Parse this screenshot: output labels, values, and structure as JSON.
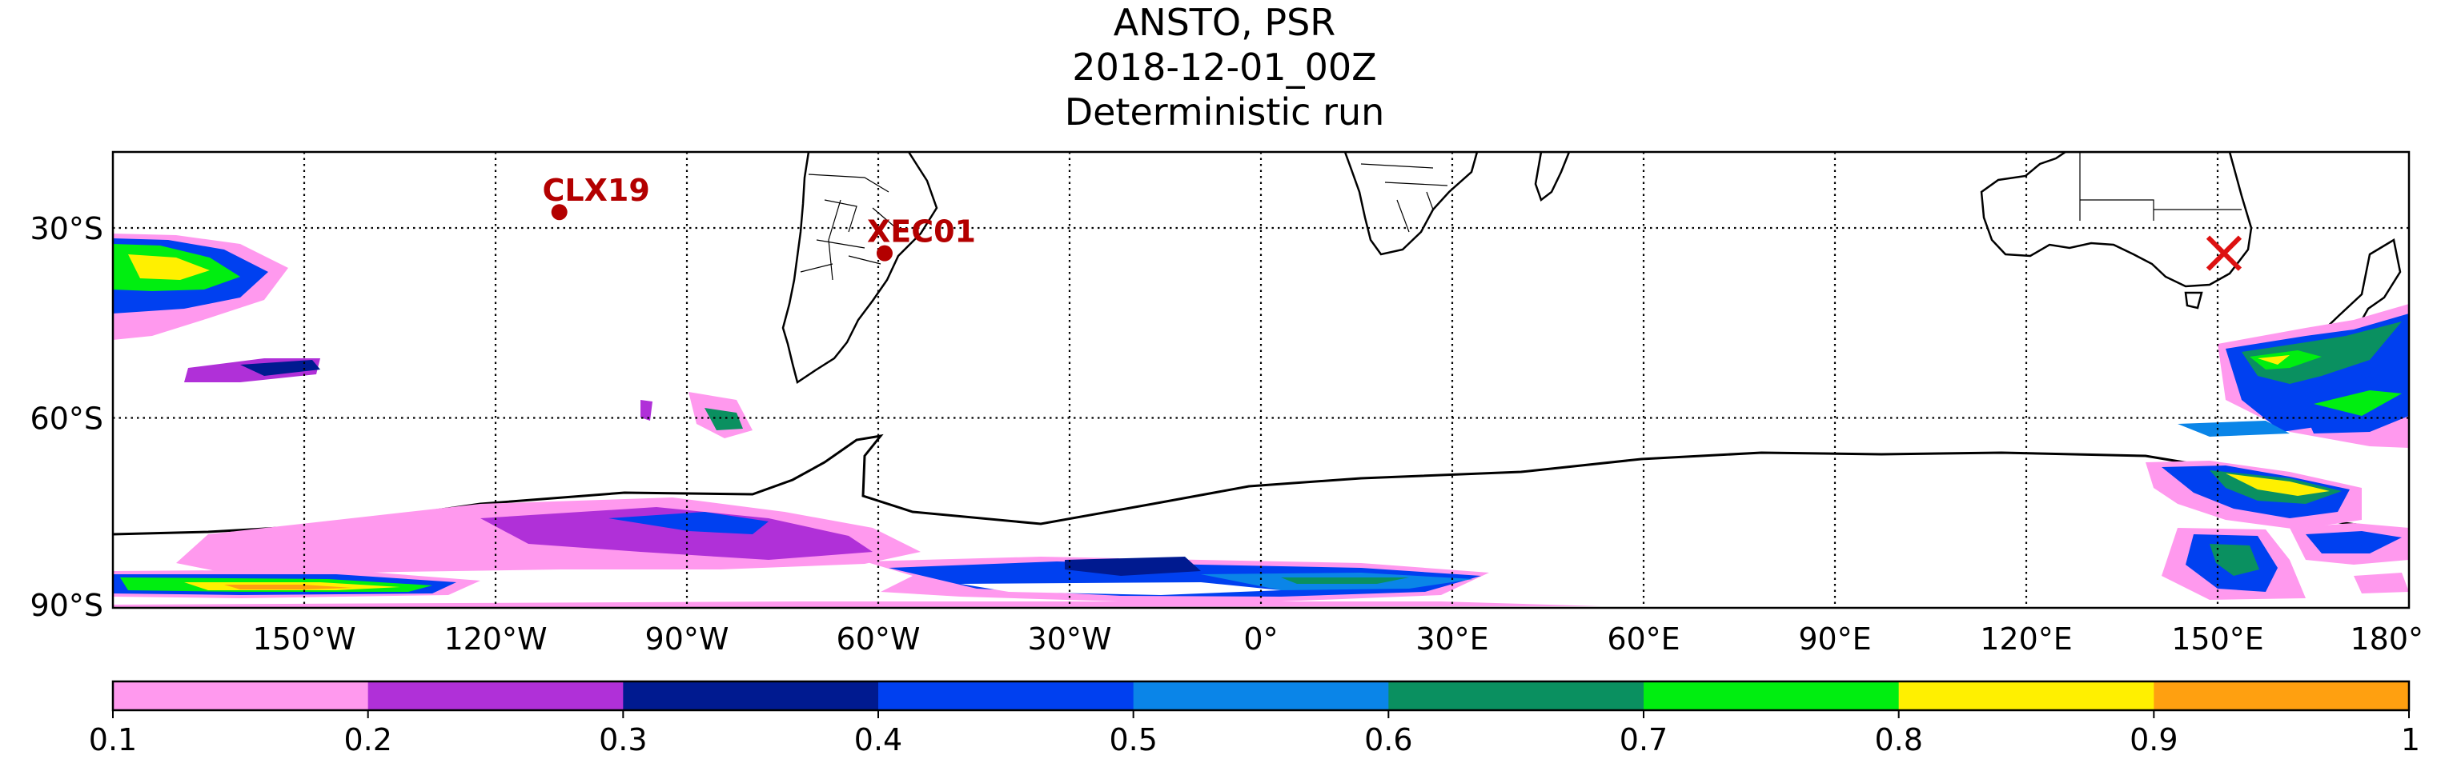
{
  "title": {
    "line1": "ANSTO, PSR",
    "line2": "2018-12-01_00Z",
    "line3": "Deterministic run"
  },
  "map": {
    "lon_range": [
      -180,
      180
    ],
    "lat_range": [
      -90,
      -18
    ],
    "gridlines": "dotted",
    "lat_ticks": [
      {
        "lat": -30,
        "label": "30°S"
      },
      {
        "lat": -60,
        "label": "60°S"
      },
      {
        "lat": -90,
        "label": "90°S"
      }
    ],
    "lon_ticks": [
      {
        "lon": -150,
        "label": "150°W"
      },
      {
        "lon": -120,
        "label": "120°W"
      },
      {
        "lon": -90,
        "label": "90°W"
      },
      {
        "lon": -60,
        "label": "60°W"
      },
      {
        "lon": -30,
        "label": "30°W"
      },
      {
        "lon": 0,
        "label": "0°"
      },
      {
        "lon": 30,
        "label": "30°E"
      },
      {
        "lon": 60,
        "label": "60°E"
      },
      {
        "lon": 90,
        "label": "90°E"
      },
      {
        "lon": 120,
        "label": "120°E"
      },
      {
        "lon": 150,
        "label": "150°E"
      },
      {
        "lon": 180,
        "label": "180°"
      }
    ],
    "markers": [
      {
        "name": "CLX19",
        "lon": -110,
        "lat": -27.5,
        "symbol": "dot",
        "color": "#b30000"
      },
      {
        "name": "XEC01",
        "lon": -59,
        "lat": -34,
        "symbol": "dot",
        "color": "#b30000"
      },
      {
        "name": "",
        "lon": 151,
        "lat": -34,
        "symbol": "x",
        "color": "#dd1111"
      }
    ]
  },
  "colorbar": {
    "ticks": [
      "0.1",
      "0.2",
      "0.3",
      "0.4",
      "0.5",
      "0.6",
      "0.7",
      "0.8",
      "0.9",
      "1"
    ],
    "colors": [
      "#ff99ee",
      "#b030d8",
      "#001a90",
      "#0040f0",
      "#0a85e8",
      "#0a9060",
      "#00ee10",
      "#fff000",
      "#ffa010"
    ]
  }
}
